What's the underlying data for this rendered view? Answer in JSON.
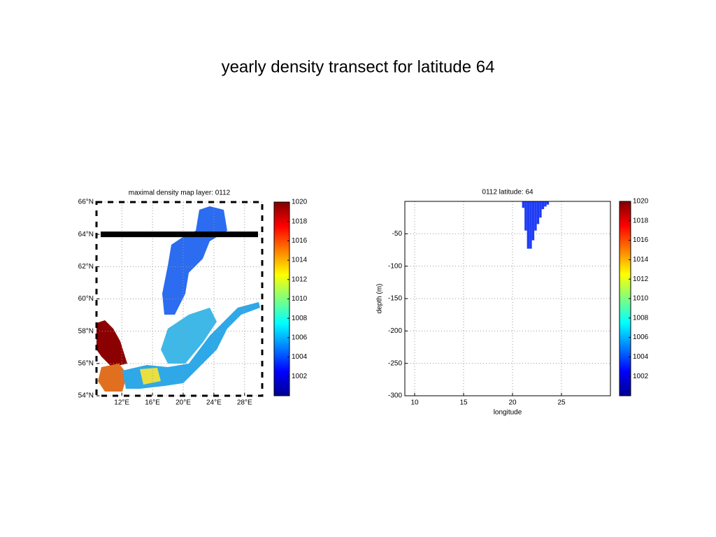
{
  "title": "yearly density transect for latitude 64",
  "chart_data": [
    {
      "type": "map",
      "title": "maximal density map layer: 0112",
      "xlim": [
        8.7,
        30.3
      ],
      "ylim": [
        54,
        66
      ],
      "xticks": [
        {
          "value": 12,
          "label": "12°E"
        },
        {
          "value": 16,
          "label": "16°E"
        },
        {
          "value": 20,
          "label": "20°E"
        },
        {
          "value": 24,
          "label": "24°E"
        },
        {
          "value": 28,
          "label": "28°E"
        }
      ],
      "yticks": [
        {
          "value": 54,
          "label": "54°N"
        },
        {
          "value": 56,
          "label": "56°N"
        },
        {
          "value": 58,
          "label": "58°N"
        },
        {
          "value": 60,
          "label": "60°N"
        },
        {
          "value": 62,
          "label": "62°N"
        },
        {
          "value": 64,
          "label": "64°N"
        },
        {
          "value": 66,
          "label": "66°N"
        }
      ],
      "transect": 64,
      "grid": true,
      "clim": [
        1000,
        1020
      ],
      "colorbar_ticks": [
        1002,
        1004,
        1006,
        1008,
        1010,
        1012,
        1014,
        1016,
        1018,
        1020
      ]
    },
    {
      "type": "bar",
      "title": "0112 latitude: 64",
      "x_label": "longitude",
      "y_label": "depth (m)",
      "x": [
        21.1,
        21.35,
        21.6,
        21.85,
        22.1,
        22.35,
        22.6,
        22.85,
        23.1,
        23.35,
        23.6
      ],
      "values": [
        -10,
        -45,
        -73,
        -73,
        -60,
        -45,
        -35,
        -25,
        -12,
        -8,
        -5
      ],
      "color": "#1f3cf5",
      "xlim": [
        9,
        30
      ],
      "ylim": [
        -300,
        0
      ],
      "xticks": [
        10,
        15,
        20,
        25
      ],
      "yticks": [
        -300,
        -250,
        -200,
        -150,
        -100,
        -50
      ],
      "grid": true,
      "clim": [
        1000,
        1020
      ],
      "colorbar_ticks": [
        1002,
        1004,
        1006,
        1008,
        1010,
        1012,
        1014,
        1016,
        1018,
        1020
      ]
    }
  ]
}
